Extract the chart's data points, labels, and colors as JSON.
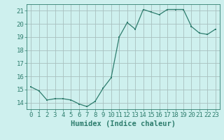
{
  "x": [
    0,
    1,
    2,
    3,
    4,
    5,
    6,
    7,
    8,
    9,
    10,
    11,
    12,
    13,
    14,
    15,
    16,
    17,
    18,
    19,
    20,
    21,
    22,
    23
  ],
  "y": [
    15.2,
    14.9,
    14.2,
    14.3,
    14.3,
    14.2,
    13.9,
    13.7,
    14.1,
    15.1,
    15.9,
    19.0,
    20.1,
    19.6,
    21.1,
    20.9,
    20.7,
    21.1,
    21.1,
    21.1,
    19.8,
    19.3,
    19.2,
    19.6
  ],
  "bg_color": "#cef0ee",
  "grid_color": "#a8c0bf",
  "line_color": "#2e7d6e",
  "marker_color": "#2e7d6e",
  "xlabel": "Humidex (Indice chaleur)",
  "ylim": [
    13.5,
    21.5
  ],
  "xlim": [
    -0.5,
    23.5
  ],
  "yticks": [
    14,
    15,
    16,
    17,
    18,
    19,
    20,
    21
  ],
  "xticks": [
    0,
    1,
    2,
    3,
    4,
    5,
    6,
    7,
    8,
    9,
    10,
    11,
    12,
    13,
    14,
    15,
    16,
    17,
    18,
    19,
    20,
    21,
    22,
    23
  ],
  "tick_color": "#2e7d6e",
  "label_color": "#2e7d6e",
  "font_size": 6.5,
  "xlabel_fontsize": 7.5
}
